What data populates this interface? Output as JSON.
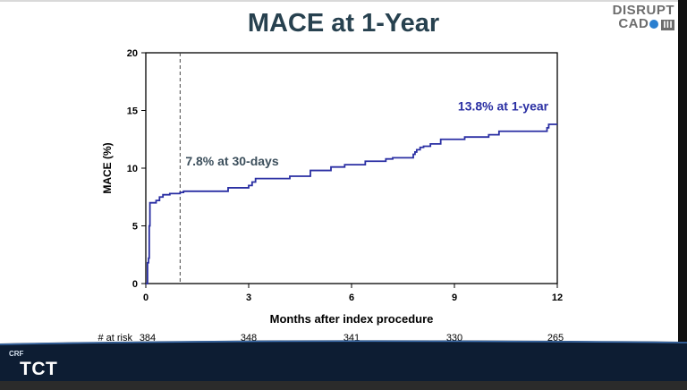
{
  "title": "MACE at 1-Year",
  "logo": {
    "line1": "DISRUPT",
    "line2a": "CAD",
    "line2b": "III"
  },
  "branding": {
    "crf": "CRF",
    "tct": "TCT"
  },
  "colors": {
    "curve": "#2a2fa3",
    "title": "#27414f",
    "annot30": "#3c4f5c",
    "annot1y": "#2a2fa3"
  },
  "chart_data": {
    "type": "line",
    "title": "MACE at 1-Year",
    "xlabel": "Months after index procedure",
    "ylabel": "MACE (%)",
    "xlim": [
      0,
      12
    ],
    "ylim": [
      0,
      20
    ],
    "xticks": [
      0,
      3,
      6,
      9,
      12
    ],
    "yticks": [
      0,
      5,
      10,
      15,
      20
    ],
    "grid": false,
    "step": true,
    "series": [
      {
        "x": [
          0,
          0.05,
          0.08,
          0.1,
          0.12,
          0.3,
          0.4,
          0.5,
          0.7,
          1.0,
          1.1,
          2.4,
          3.0,
          3.1,
          3.2,
          4.2,
          4.8,
          5.4,
          5.8,
          6.4,
          7.0,
          7.2,
          7.8,
          7.85,
          7.9,
          8.0,
          8.1,
          8.3,
          8.6,
          9.3,
          10.0,
          10.3,
          11.7,
          11.75,
          12.0
        ],
        "y": [
          0,
          1.8,
          2.2,
          5.0,
          7.0,
          7.2,
          7.5,
          7.7,
          7.8,
          7.9,
          8.0,
          8.3,
          8.5,
          8.8,
          9.1,
          9.3,
          9.8,
          10.1,
          10.3,
          10.6,
          10.8,
          10.9,
          11.2,
          11.4,
          11.6,
          11.8,
          11.9,
          12.1,
          12.5,
          12.7,
          12.9,
          13.2,
          13.5,
          13.8,
          13.8
        ]
      }
    ],
    "reference_line": {
      "x": 1
    },
    "annotations": [
      {
        "text": "7.8% at 30-days"
      },
      {
        "text": "13.8% at 1-year"
      }
    ],
    "risk_table": {
      "label": "# at risk",
      "x": [
        0,
        3,
        6,
        9,
        12
      ],
      "values": [
        "384",
        "348",
        "341",
        "330",
        "265"
      ]
    }
  }
}
